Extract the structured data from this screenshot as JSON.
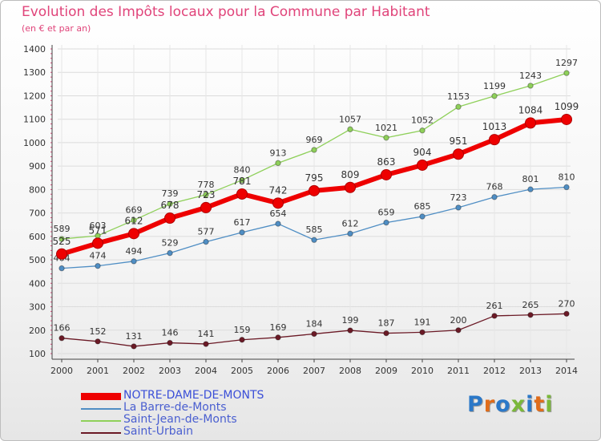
{
  "title": "Evolution des Impôts locaux pour la Commune par Habitant",
  "subtitle": "(en € et par an)",
  "brand": {
    "letters": [
      "P",
      "r",
      "o",
      "x",
      "i",
      "t",
      "i"
    ],
    "colors": [
      "#2b78c8",
      "#e06c1a",
      "#2b78c8",
      "#7bb83a",
      "#2b78c8",
      "#e06c1a",
      "#7bb83a"
    ]
  },
  "chart_data": {
    "type": "line",
    "title": "Evolution des Impôts locaux pour la Commune par Habitant",
    "subtitle": "(en € et par an)",
    "x": [
      2000,
      2001,
      2002,
      2003,
      2004,
      2005,
      2006,
      2007,
      2008,
      2009,
      2010,
      2011,
      2012,
      2013,
      2014
    ],
    "ylim": [
      100,
      1400
    ],
    "yticks": [
      100,
      200,
      300,
      400,
      500,
      600,
      700,
      800,
      900,
      1000,
      1100,
      1200,
      1300,
      1400
    ],
    "grid": true,
    "legend_position": "bottom-left",
    "series": [
      {
        "name": "NOTRE-DAME-DE-MONTS",
        "color": "#ee0000",
        "highlight": true,
        "values": [
          525,
          571,
          612,
          678,
          723,
          781,
          742,
          795,
          809,
          863,
          904,
          951,
          1013,
          1084,
          1099
        ]
      },
      {
        "name": "La Barre-de-Monts",
        "color": "#4f8ec4",
        "highlight": false,
        "values": [
          464,
          474,
          494,
          529,
          577,
          617,
          654,
          585,
          612,
          659,
          685,
          723,
          768,
          801,
          810
        ]
      },
      {
        "name": "Saint-Jean-de-Monts",
        "color": "#8fd05a",
        "highlight": false,
        "values": [
          589,
          603,
          669,
          739,
          778,
          840,
          913,
          969,
          1057,
          1021,
          1052,
          1153,
          1199,
          1243,
          1297
        ]
      },
      {
        "name": "Saint-Urbain",
        "color": "#6b1a26",
        "highlight": false,
        "values": [
          166,
          152,
          131,
          146,
          141,
          159,
          169,
          184,
          199,
          187,
          191,
          200,
          261,
          265,
          270
        ]
      }
    ]
  }
}
